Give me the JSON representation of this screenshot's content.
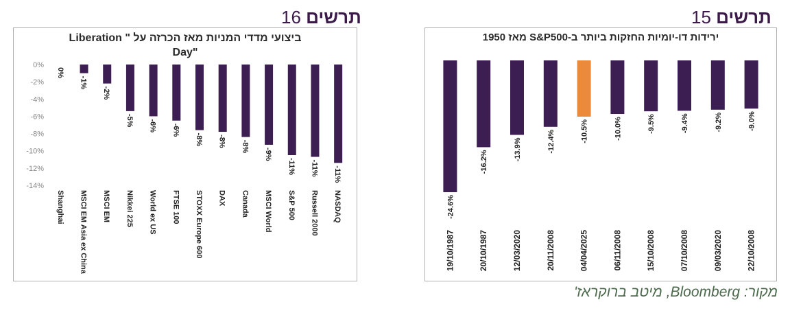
{
  "figure_left": {
    "word": "תרשים",
    "number": "16"
  },
  "figure_right": {
    "word": "תרשים",
    "number": "15"
  },
  "source": "מקור: Bloomberg, מיטב ברוקראז'",
  "colors": {
    "bar": "#3d1e52",
    "highlight": "#ec8a3c",
    "axis_text": "#888888",
    "frame": "#b0b0b0"
  },
  "chart_data": [
    {
      "type": "bar",
      "title_lines": [
        "ביצועי מדדי המניות מאז הכרזה על \" Liberation",
        "\"Day"
      ],
      "categories": [
        "Shanghai",
        "MSCI EM Asia ex China",
        "MSCI EM",
        "Nikkei 225",
        "World ex US",
        "FTSE 100",
        "STOXX Europe 600",
        "DAX",
        "Canada",
        "MSCI World",
        "S&P 500",
        "Russell 2000",
        "NASDAQ"
      ],
      "values": [
        0,
        -1,
        -2.2,
        -5.4,
        -6,
        -6.5,
        -7.6,
        -7.8,
        -8.4,
        -9.3,
        -10.5,
        -10.7,
        -11.4
      ],
      "data_labels": [
        "0%",
        "-1%",
        "-2%",
        "-5%",
        "-6%",
        "-6%",
        "-8%",
        "-8%",
        "-8%",
        "-9%",
        "-11%",
        "-11%",
        "-11%"
      ],
      "ylim": [
        -14,
        0
      ],
      "yticks": [
        0,
        -2,
        -4,
        -6,
        -8,
        -10,
        -12,
        -14
      ],
      "ytick_labels": [
        "0%",
        "-2%",
        "-4%",
        "-6%",
        "-8%",
        "-10%",
        "-12%",
        "-14%"
      ],
      "grid": false,
      "legend": "none"
    },
    {
      "type": "bar",
      "title_lines": [
        "ירידות דו-יומיות החזקות ביותר ב-S&P500 מאז 1950"
      ],
      "categories": [
        "19/10/1987",
        "20/10/1987",
        "12/03/2020",
        "20/11/2008",
        "04/04/2025",
        "06/11/2008",
        "15/10/2008",
        "07/10/2008",
        "09/03/2020",
        "22/10/2008"
      ],
      "values": [
        -24.6,
        -16.2,
        -13.9,
        -12.4,
        -10.5,
        -10.0,
        -9.5,
        -9.4,
        -9.2,
        -9.0
      ],
      "data_labels": [
        "-24.6%",
        "-16.2%",
        "-13.9%",
        "-12.4%",
        "-10.5%",
        "-10.0%",
        "-9.5%",
        "-9.4%",
        "-9.2%",
        "-9.0%"
      ],
      "highlight_index": 4,
      "ylim": [
        -26,
        0
      ],
      "grid": false,
      "legend": "none"
    }
  ]
}
